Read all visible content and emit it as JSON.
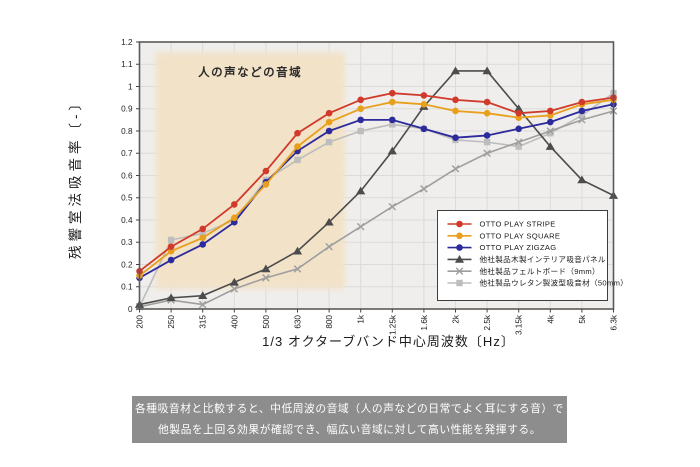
{
  "page": {
    "background": "#ffffff"
  },
  "chart_data": {
    "type": "line",
    "title": "",
    "xlabel": "1/3 オクターブバンド中心周波数〔Hz〕",
    "ylabel": "残響室法吸音率〔-〕",
    "ylim": [
      0,
      1.2
    ],
    "grid": true,
    "legend_position": "inside-lower-right",
    "ytick_labels": [
      "0",
      "0.1",
      "0.2",
      "0.3",
      "0.4",
      "0.5",
      "0.6",
      "0.7",
      "0.8",
      "0.9",
      "1",
      "1.1",
      "1.2"
    ],
    "categories": [
      "200",
      "250",
      "315",
      "400",
      "500",
      "630",
      "800",
      "1k",
      "1.25k",
      "1.6k",
      "2k",
      "2.5k",
      "3.15k",
      "4k",
      "5k",
      "6.3k"
    ],
    "highlight_band": {
      "label": "人の声などの音域",
      "from_category": "250",
      "to_category": "800",
      "color": "#f3e2c7"
    },
    "series": [
      {
        "name": "OTTO  PLAY STRIPE",
        "color": "#d13a2b",
        "marker": "circle",
        "values": [
          0.17,
          0.28,
          0.36,
          0.47,
          0.62,
          0.79,
          0.88,
          0.94,
          0.97,
          0.96,
          0.94,
          0.93,
          0.88,
          0.89,
          0.93,
          0.95
        ]
      },
      {
        "name": "OTTO  PLAY SQUARE",
        "color": "#e8a01c",
        "marker": "circle",
        "values": [
          0.15,
          0.26,
          0.32,
          0.41,
          0.56,
          0.73,
          0.84,
          0.9,
          0.93,
          0.92,
          0.89,
          0.88,
          0.86,
          0.87,
          0.92,
          0.94
        ]
      },
      {
        "name": "OTTO  PLAY ZIGZAG",
        "color": "#2c2a9c",
        "marker": "circle",
        "values": [
          0.14,
          0.22,
          0.29,
          0.39,
          0.57,
          0.71,
          0.8,
          0.85,
          0.85,
          0.81,
          0.77,
          0.78,
          0.81,
          0.84,
          0.89,
          0.92
        ]
      },
      {
        "name": "他社製品木製インテリア吸音パネル",
        "color": "#4c4c4c",
        "marker": "triangle",
        "values": [
          0.02,
          0.05,
          0.06,
          0.12,
          0.18,
          0.26,
          0.39,
          0.53,
          0.71,
          0.91,
          1.07,
          1.07,
          0.9,
          0.73,
          0.58,
          0.51
        ]
      },
      {
        "name": "他社製品フェルトボード（9mm）",
        "color": "#9e9e9e",
        "marker": "x",
        "values": [
          0.01,
          0.04,
          0.02,
          0.09,
          0.14,
          0.18,
          0.28,
          0.37,
          0.46,
          0.54,
          0.63,
          0.7,
          0.75,
          0.8,
          0.85,
          0.89
        ]
      },
      {
        "name": "他社製品ウレタン製波型吸音材（50mm）",
        "color": "#bdbdbd",
        "marker": "square",
        "values": [
          0.01,
          0.31,
          0.34,
          0.4,
          0.58,
          0.67,
          0.75,
          0.8,
          0.83,
          0.81,
          0.76,
          0.75,
          0.73,
          0.79,
          0.87,
          0.97
        ]
      }
    ]
  },
  "caption": {
    "background": "#8d8d8d",
    "text_color": "#ffffff",
    "lines": [
      "各種吸音材と比較すると、中低周波の音域（人の声などの日常でよく耳にする音）で",
      "他製品を上回る効果が確認でき、幅広い音域に対して高い性能を発揮する。"
    ]
  }
}
